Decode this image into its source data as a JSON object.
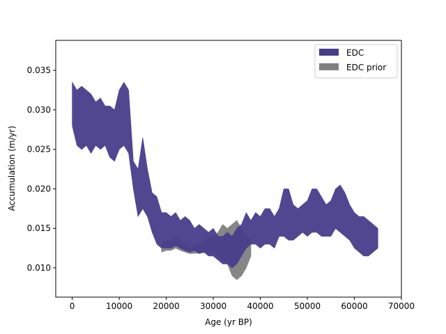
{
  "chart_data": {
    "type": "area",
    "title": "",
    "xlabel": "Age (yr BP)",
    "ylabel": "Accumulation (m/yr)",
    "xlim": [
      -3500,
      70000
    ],
    "ylim": [
      0.0063,
      0.0388
    ],
    "xticks": [
      0,
      10000,
      20000,
      30000,
      40000,
      50000,
      60000,
      70000
    ],
    "yticks": [
      0.01,
      0.015,
      0.02,
      0.025,
      0.03,
      0.035
    ],
    "xtick_labels": [
      "0",
      "10000",
      "20000",
      "30000",
      "40000",
      "50000",
      "60000",
      "70000"
    ],
    "ytick_labels": [
      "0.010",
      "0.015",
      "0.020",
      "0.025",
      "0.030",
      "0.035"
    ],
    "grid": false,
    "legend_position": "top-right",
    "legend": [
      {
        "label": "EDC",
        "color": "#483d8b"
      },
      {
        "label": "EDC prior",
        "color": "#808080"
      }
    ],
    "series": [
      {
        "name": "EDC",
        "color": "#483d8b",
        "x": [
          0,
          1000,
          2000,
          3000,
          4000,
          5000,
          6000,
          7000,
          8000,
          9000,
          10000,
          11000,
          12000,
          13000,
          14000,
          15000,
          16000,
          17000,
          18000,
          19000,
          20000,
          21000,
          22000,
          23000,
          24000,
          25000,
          26000,
          27000,
          28000,
          29000,
          30000,
          31000,
          32000,
          33000,
          34000,
          35000,
          36000,
          37000,
          38000,
          39000,
          40000,
          41000,
          42000,
          43000,
          44000,
          45000,
          46000,
          47000,
          48000,
          49000,
          50000,
          51000,
          52000,
          53000,
          54000,
          55000,
          56000,
          57000,
          58000,
          59000,
          60000,
          61000,
          62000,
          63000,
          64000,
          65000
        ],
        "upper": [
          0.0335,
          0.0325,
          0.033,
          0.0325,
          0.032,
          0.031,
          0.0315,
          0.0305,
          0.0305,
          0.03,
          0.0325,
          0.0335,
          0.0325,
          0.0235,
          0.0225,
          0.0265,
          0.0225,
          0.0195,
          0.019,
          0.017,
          0.017,
          0.0165,
          0.017,
          0.016,
          0.0165,
          0.016,
          0.015,
          0.0155,
          0.015,
          0.0145,
          0.015,
          0.014,
          0.014,
          0.0145,
          0.014,
          0.015,
          0.0155,
          0.017,
          0.016,
          0.017,
          0.0165,
          0.0175,
          0.0175,
          0.0165,
          0.0175,
          0.02,
          0.02,
          0.018,
          0.0175,
          0.018,
          0.0185,
          0.02,
          0.02,
          0.019,
          0.018,
          0.0185,
          0.02,
          0.0205,
          0.0195,
          0.018,
          0.017,
          0.0165,
          0.0165,
          0.016,
          0.0155,
          0.015
        ],
        "lower": [
          0.028,
          0.0255,
          0.025,
          0.0255,
          0.0245,
          0.0255,
          0.025,
          0.0255,
          0.024,
          0.0235,
          0.025,
          0.0255,
          0.0245,
          0.02,
          0.0165,
          0.0175,
          0.0165,
          0.0145,
          0.013,
          0.0125,
          0.0125,
          0.0125,
          0.0128,
          0.0125,
          0.0122,
          0.012,
          0.0122,
          0.0118,
          0.012,
          0.0115,
          0.0115,
          0.011,
          0.0105,
          0.0105,
          0.01,
          0.0105,
          0.0115,
          0.0125,
          0.013,
          0.013,
          0.0125,
          0.013,
          0.013,
          0.0125,
          0.014,
          0.014,
          0.0135,
          0.0135,
          0.014,
          0.0145,
          0.014,
          0.0145,
          0.0145,
          0.014,
          0.014,
          0.014,
          0.015,
          0.0145,
          0.014,
          0.0135,
          0.0125,
          0.012,
          0.0115,
          0.0115,
          0.012,
          0.0125
        ]
      },
      {
        "name": "EDC prior",
        "color": "#808080",
        "x": [
          19000,
          20000,
          21000,
          22000,
          23000,
          24000,
          25000,
          30000,
          31000,
          32000,
          33000,
          34000,
          35000,
          36000,
          37000,
          38000
        ],
        "upper": [
          0.013,
          0.0135,
          0.0135,
          0.014,
          0.0135,
          0.013,
          0.0125,
          0.014,
          0.0145,
          0.0155,
          0.015,
          0.0155,
          0.016,
          0.015,
          0.014,
          0.0135
        ],
        "lower": [
          0.012,
          0.0122,
          0.0122,
          0.0125,
          0.0122,
          0.012,
          0.0118,
          0.012,
          0.0115,
          0.011,
          0.0105,
          0.009,
          0.0085,
          0.009,
          0.01,
          0.0115
        ]
      }
    ]
  }
}
